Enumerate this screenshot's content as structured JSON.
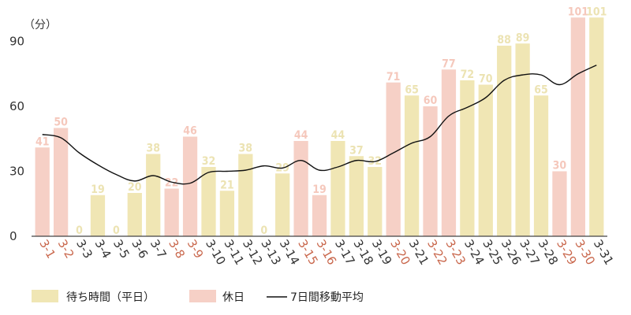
{
  "chart_data": {
    "type": "bar",
    "unit_label": "（分）",
    "categories": [
      "3-1",
      "3-2",
      "3-3",
      "3-4",
      "3-5",
      "3-6",
      "3-7",
      "3-8",
      "3-9",
      "3-10",
      "3-11",
      "3-12",
      "3-13",
      "3-14",
      "3-15",
      "3-16",
      "3-17",
      "3-18",
      "3-19",
      "3-20",
      "3-21",
      "3-22",
      "3-23",
      "3-24",
      "3-25",
      "3-26",
      "3-27",
      "3-28",
      "3-29",
      "3-30",
      "3-31"
    ],
    "values": [
      41,
      50,
      0,
      19,
      0,
      20,
      38,
      22,
      46,
      32,
      21,
      38,
      0,
      29,
      44,
      19,
      44,
      37,
      32,
      71,
      65,
      60,
      77,
      72,
      70,
      88,
      89,
      65,
      30,
      101,
      101
    ],
    "holiday": [
      true,
      true,
      false,
      false,
      false,
      false,
      false,
      true,
      true,
      false,
      false,
      false,
      false,
      false,
      true,
      true,
      false,
      false,
      false,
      true,
      false,
      true,
      true,
      false,
      false,
      false,
      false,
      false,
      true,
      true,
      false
    ],
    "moving_average": [
      47,
      45.5,
      38.5,
      33,
      28.5,
      25.5,
      28,
      25,
      24.5,
      29.5,
      30,
      30.5,
      32.5,
      31.5,
      35,
      30.5,
      32,
      35,
      34.5,
      38.5,
      43,
      46,
      55.5,
      59.5,
      64,
      72,
      74.5,
      74.5,
      70,
      75,
      79
    ],
    "ylim": [
      0,
      110
    ],
    "yticks": [
      0,
      30,
      60,
      90
    ],
    "colors": {
      "weekday": "#f0e6b4",
      "holiday": "#f6d0c6",
      "weekday_text": "#ece3b3",
      "holiday_text": "#f5c8bc",
      "weekday_tick": "#333333",
      "holiday_tick": "#c9674c",
      "line": "#111111",
      "axis": "#444444"
    },
    "legend": [
      {
        "label": "待ち時間（平日）",
        "kind": "weekday"
      },
      {
        "label": "休日",
        "kind": "holiday"
      },
      {
        "label": "7日間移動平均",
        "kind": "line"
      }
    ],
    "legend_position": "bottom-left",
    "grid": false
  }
}
